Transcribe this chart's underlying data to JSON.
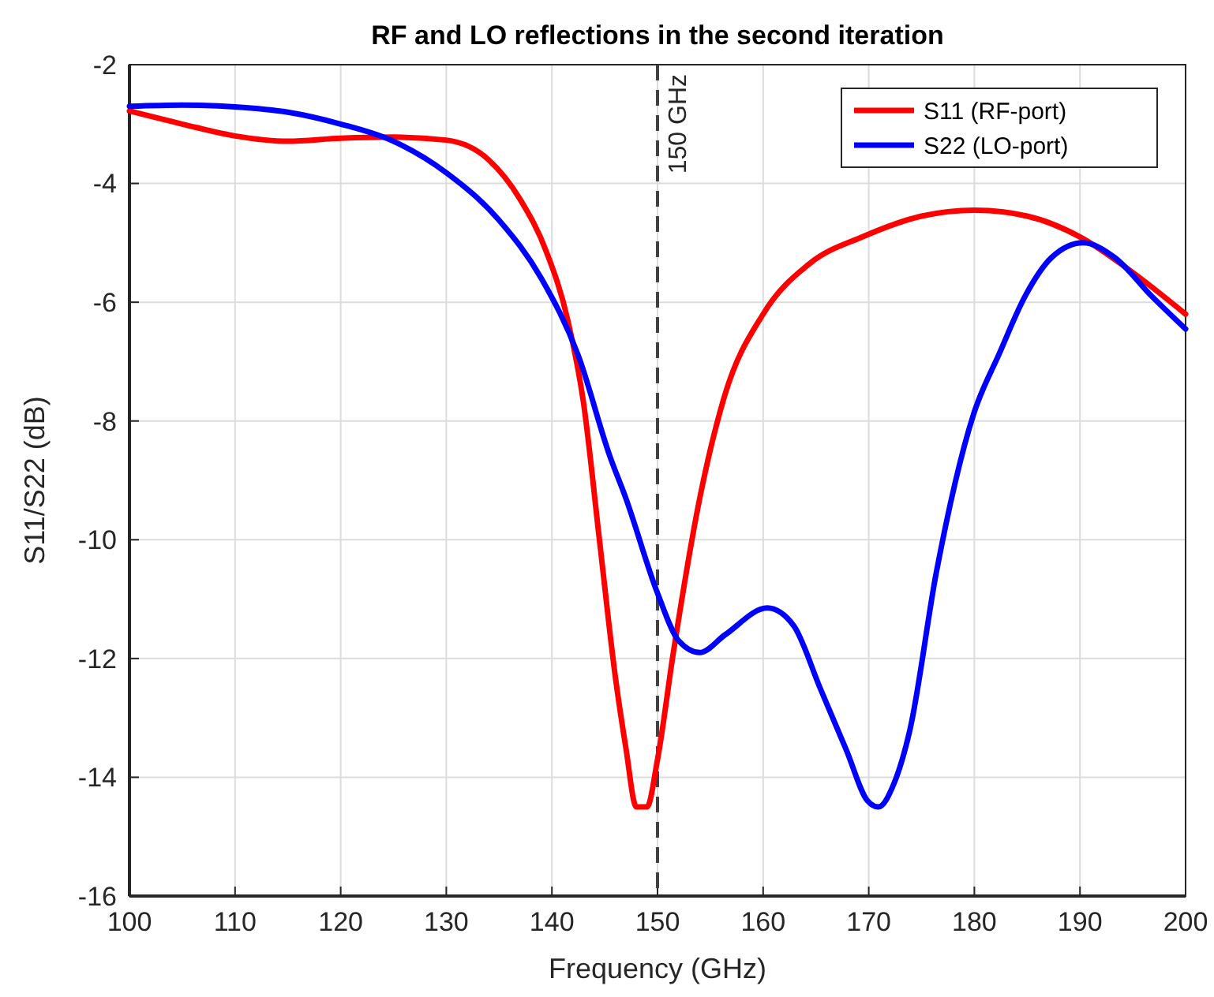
{
  "chart_data": {
    "type": "line",
    "title": "RF and LO reflections in the second iteration",
    "xlabel": "Frequency (GHz)",
    "ylabel": "S11/S22 (dB)",
    "xlim": [
      100,
      200
    ],
    "xticks": [
      100,
      110,
      120,
      130,
      140,
      150,
      160,
      170,
      180,
      190,
      200
    ],
    "ylim": [
      -16,
      -2
    ],
    "yticks": [
      -16,
      -14,
      -12,
      -10,
      -8,
      -6,
      -4,
      -2
    ],
    "grid": true,
    "legend": "top right",
    "line_style": "solid",
    "marker": "none",
    "ref_lines": [
      {
        "axis": "x",
        "value": 150,
        "label": "150 GHz",
        "color": "#404040",
        "line_style": "dashed"
      }
    ],
    "series": [
      {
        "name": "S11 (RF-port)",
        "color": "#ff0000",
        "x": [
          100,
          105,
          110,
          115,
          120,
          125,
          130,
          134,
          137,
          139.5,
          141.5,
          143,
          144.5,
          146,
          147,
          148,
          149,
          150,
          151.5,
          154,
          156.4,
          160,
          164.4,
          169.4,
          175,
          180,
          185,
          190,
          195,
          200
        ],
        "values": [
          -2.78,
          -3.0,
          -3.2,
          -3.29,
          -3.24,
          -3.22,
          -3.27,
          -3.6,
          -4.27,
          -5.16,
          -6.3,
          -7.7,
          -10.0,
          -12.3,
          -13.5,
          -14.5,
          -14.5,
          -13.7,
          -11.9,
          -9.3,
          -7.55,
          -6.2,
          -5.35,
          -4.9,
          -4.55,
          -4.45,
          -4.55,
          -4.9,
          -5.5,
          -6.2
        ]
      },
      {
        "name": "S22 (LO-port)",
        "color": "#0000ff",
        "x": [
          100,
          105,
          110,
          115,
          120,
          125,
          130,
          135,
          139,
          142.5,
          145.5,
          147,
          150,
          152,
          154,
          156.4,
          160.4,
          162.9,
          165.4,
          167.9,
          169.9,
          170.9,
          172.4,
          173.9,
          176.4,
          179.9,
          182.4,
          184.8,
          187.3,
          190.3,
          193.3,
          196.8,
          200
        ],
        "values": [
          -2.7,
          -2.68,
          -2.71,
          -2.8,
          -3.0,
          -3.29,
          -3.82,
          -4.62,
          -5.6,
          -6.9,
          -8.6,
          -9.3,
          -10.9,
          -11.7,
          -11.9,
          -11.6,
          -11.15,
          -11.45,
          -12.5,
          -13.55,
          -14.4,
          -14.5,
          -14.1,
          -13.2,
          -10.55,
          -7.9,
          -6.85,
          -5.9,
          -5.25,
          -5.0,
          -5.25,
          -5.9,
          -6.45
        ]
      }
    ]
  }
}
